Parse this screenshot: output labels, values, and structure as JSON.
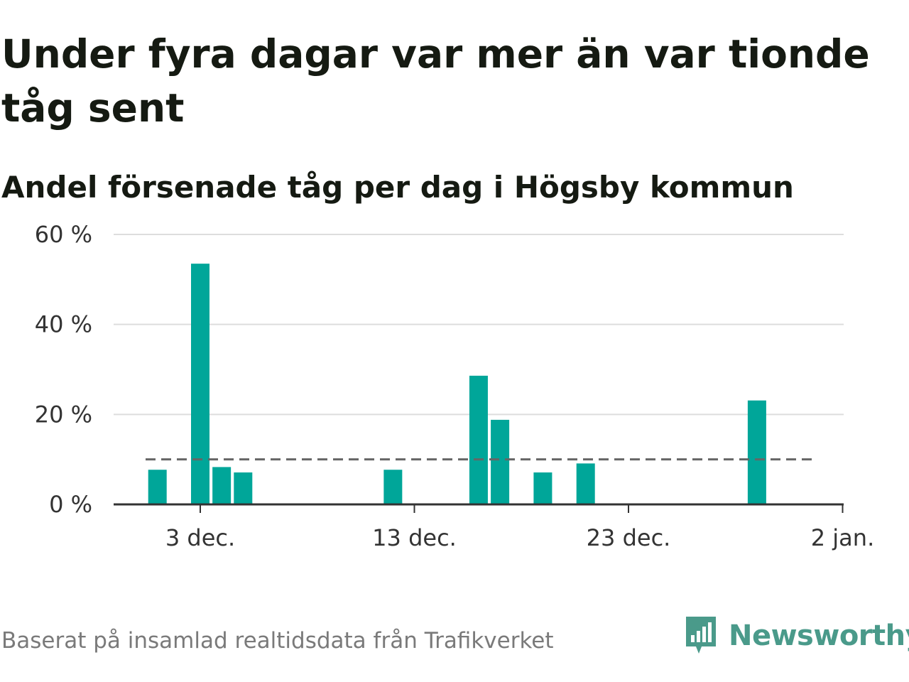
{
  "title": "Under fyra dagar var mer än var tionde tåg sent",
  "subtitle": "Andel försenade tåg per dag i Högsby kommun",
  "footer": "Baserat på insamlad realtidsdata från Trafikverket",
  "brand": {
    "name": "Newsworthy",
    "icon": "newsworthy-logo-icon",
    "color": "#4a9a8a"
  },
  "chart_data": {
    "type": "bar",
    "x": [
      "1 dec.",
      "3 dec.",
      "4 dec.",
      "5 dec.",
      "12 dec.",
      "16 dec.",
      "17 dec.",
      "19 dec.",
      "21 dec.",
      "29 dec."
    ],
    "values": [
      7.7,
      53.5,
      8.3,
      7.1,
      7.7,
      28.6,
      18.8,
      7.1,
      9.1,
      23.1
    ],
    "x_range": [
      "30 nov.",
      "2 jan."
    ],
    "x_ticks": [
      "3 dec.",
      "13 dec.",
      "23 dec.",
      "2 jan."
    ],
    "y_ticks": [
      "0 %",
      "20 %",
      "40 %",
      "60 %"
    ],
    "ylim": [
      0,
      60
    ],
    "reference_line": 10,
    "bar_color": "#00a699",
    "reference_line_color": "#666666",
    "grid": true,
    "xlabel": "",
    "ylabel": ""
  }
}
